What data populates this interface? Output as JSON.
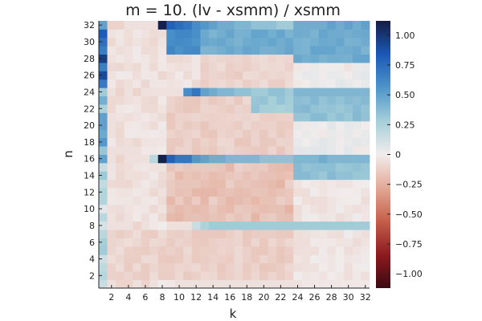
{
  "chart_data": {
    "type": "heatmap",
    "title": "m = 10. (lv - xsmm) / xsmm",
    "xlabel": "k",
    "ylabel": "n",
    "x_range": [
      1,
      32
    ],
    "y_range": [
      1,
      32
    ],
    "x_ticks": [
      2,
      4,
      6,
      8,
      10,
      12,
      14,
      16,
      18,
      20,
      22,
      24,
      26,
      28,
      30,
      32
    ],
    "y_ticks": [
      2,
      4,
      6,
      8,
      10,
      12,
      14,
      16,
      18,
      20,
      22,
      24,
      26,
      28,
      30,
      32
    ],
    "colorbar": {
      "min": -1.12,
      "max": 1.12,
      "ticks": [
        -1.0,
        -0.75,
        -0.5,
        -0.25,
        0,
        0.25,
        0.5,
        0.75,
        1.0
      ],
      "tick_labels": [
        "−1.00",
        "−0.75",
        "−0.50",
        "−0.25",
        "0",
        "0.25",
        "0.50",
        "0.75",
        "1.00"
      ],
      "colormap": "balance",
      "colors": [
        "#3c0911",
        "#8d1a1f",
        "#c65e4a",
        "#e2a996",
        "#f1ecec",
        "#a6cfd8",
        "#4e95c9",
        "#1a58b8",
        "#151d44"
      ]
    },
    "grid": false,
    "legend": "none",
    "row_pattern": {
      "n1": [
        0.15,
        -0.05,
        -0.1,
        -0.1,
        -0.05,
        -0.1,
        -0.05,
        0.0,
        -0.02,
        -0.05,
        -0.05,
        -0.05,
        -0.05,
        -0.05,
        -0.05,
        -0.05,
        -0.05,
        -0.05,
        -0.05,
        -0.05,
        -0.05,
        -0.05,
        -0.05,
        -0.05,
        -0.02,
        -0.02,
        -0.02,
        -0.02,
        -0.02,
        -0.02,
        -0.02,
        -0.02
      ],
      "n8": [
        0.1,
        -0.05,
        -0.05,
        -0.05,
        -0.1,
        -0.05,
        -0.02,
        0.0,
        -0.05,
        -0.05,
        -0.05,
        0.15,
        0.25,
        0.3,
        0.3,
        0.3,
        0.3,
        0.3,
        0.3,
        0.3,
        0.3,
        0.3,
        0.3,
        0.3,
        0.3,
        0.3,
        0.3,
        0.3,
        0.3,
        0.3,
        0.3,
        0.3
      ],
      "n16": [
        0.5,
        -0.05,
        -0.1,
        -0.05,
        -0.05,
        -0.05,
        0.2,
        1.1,
        0.8,
        0.7,
        0.7,
        0.55,
        0.5,
        0.45,
        0.45,
        0.4,
        0.4,
        0.4,
        0.4,
        0.35,
        0.35,
        0.35,
        0.35,
        0.4,
        0.4,
        0.4,
        0.45,
        0.4,
        0.4,
        0.4,
        0.4,
        0.4
      ],
      "n24": [
        0.3,
        -0.05,
        -0.1,
        -0.05,
        -0.1,
        -0.05,
        -0.05,
        -0.05,
        -0.05,
        -0.05,
        0.6,
        0.7,
        0.5,
        0.45,
        0.4,
        0.4,
        0.35,
        0.35,
        0.3,
        0.3,
        0.35,
        0.35,
        0.3,
        0.4,
        0.4,
        0.4,
        0.4,
        0.4,
        0.4,
        0.4,
        0.4,
        0.4
      ],
      "n32": [
        0.5,
        -0.1,
        -0.1,
        -0.05,
        -0.05,
        -0.05,
        -0.05,
        1.1,
        0.8,
        0.75,
        0.7,
        0.6,
        0.55,
        0.5,
        0.45,
        0.45,
        0.4,
        0.4,
        0.35,
        0.35,
        0.35,
        0.3,
        0.3,
        0.45,
        0.45,
        0.45,
        0.45,
        0.5,
        0.45,
        0.5,
        0.45,
        0.5
      ]
    }
  }
}
